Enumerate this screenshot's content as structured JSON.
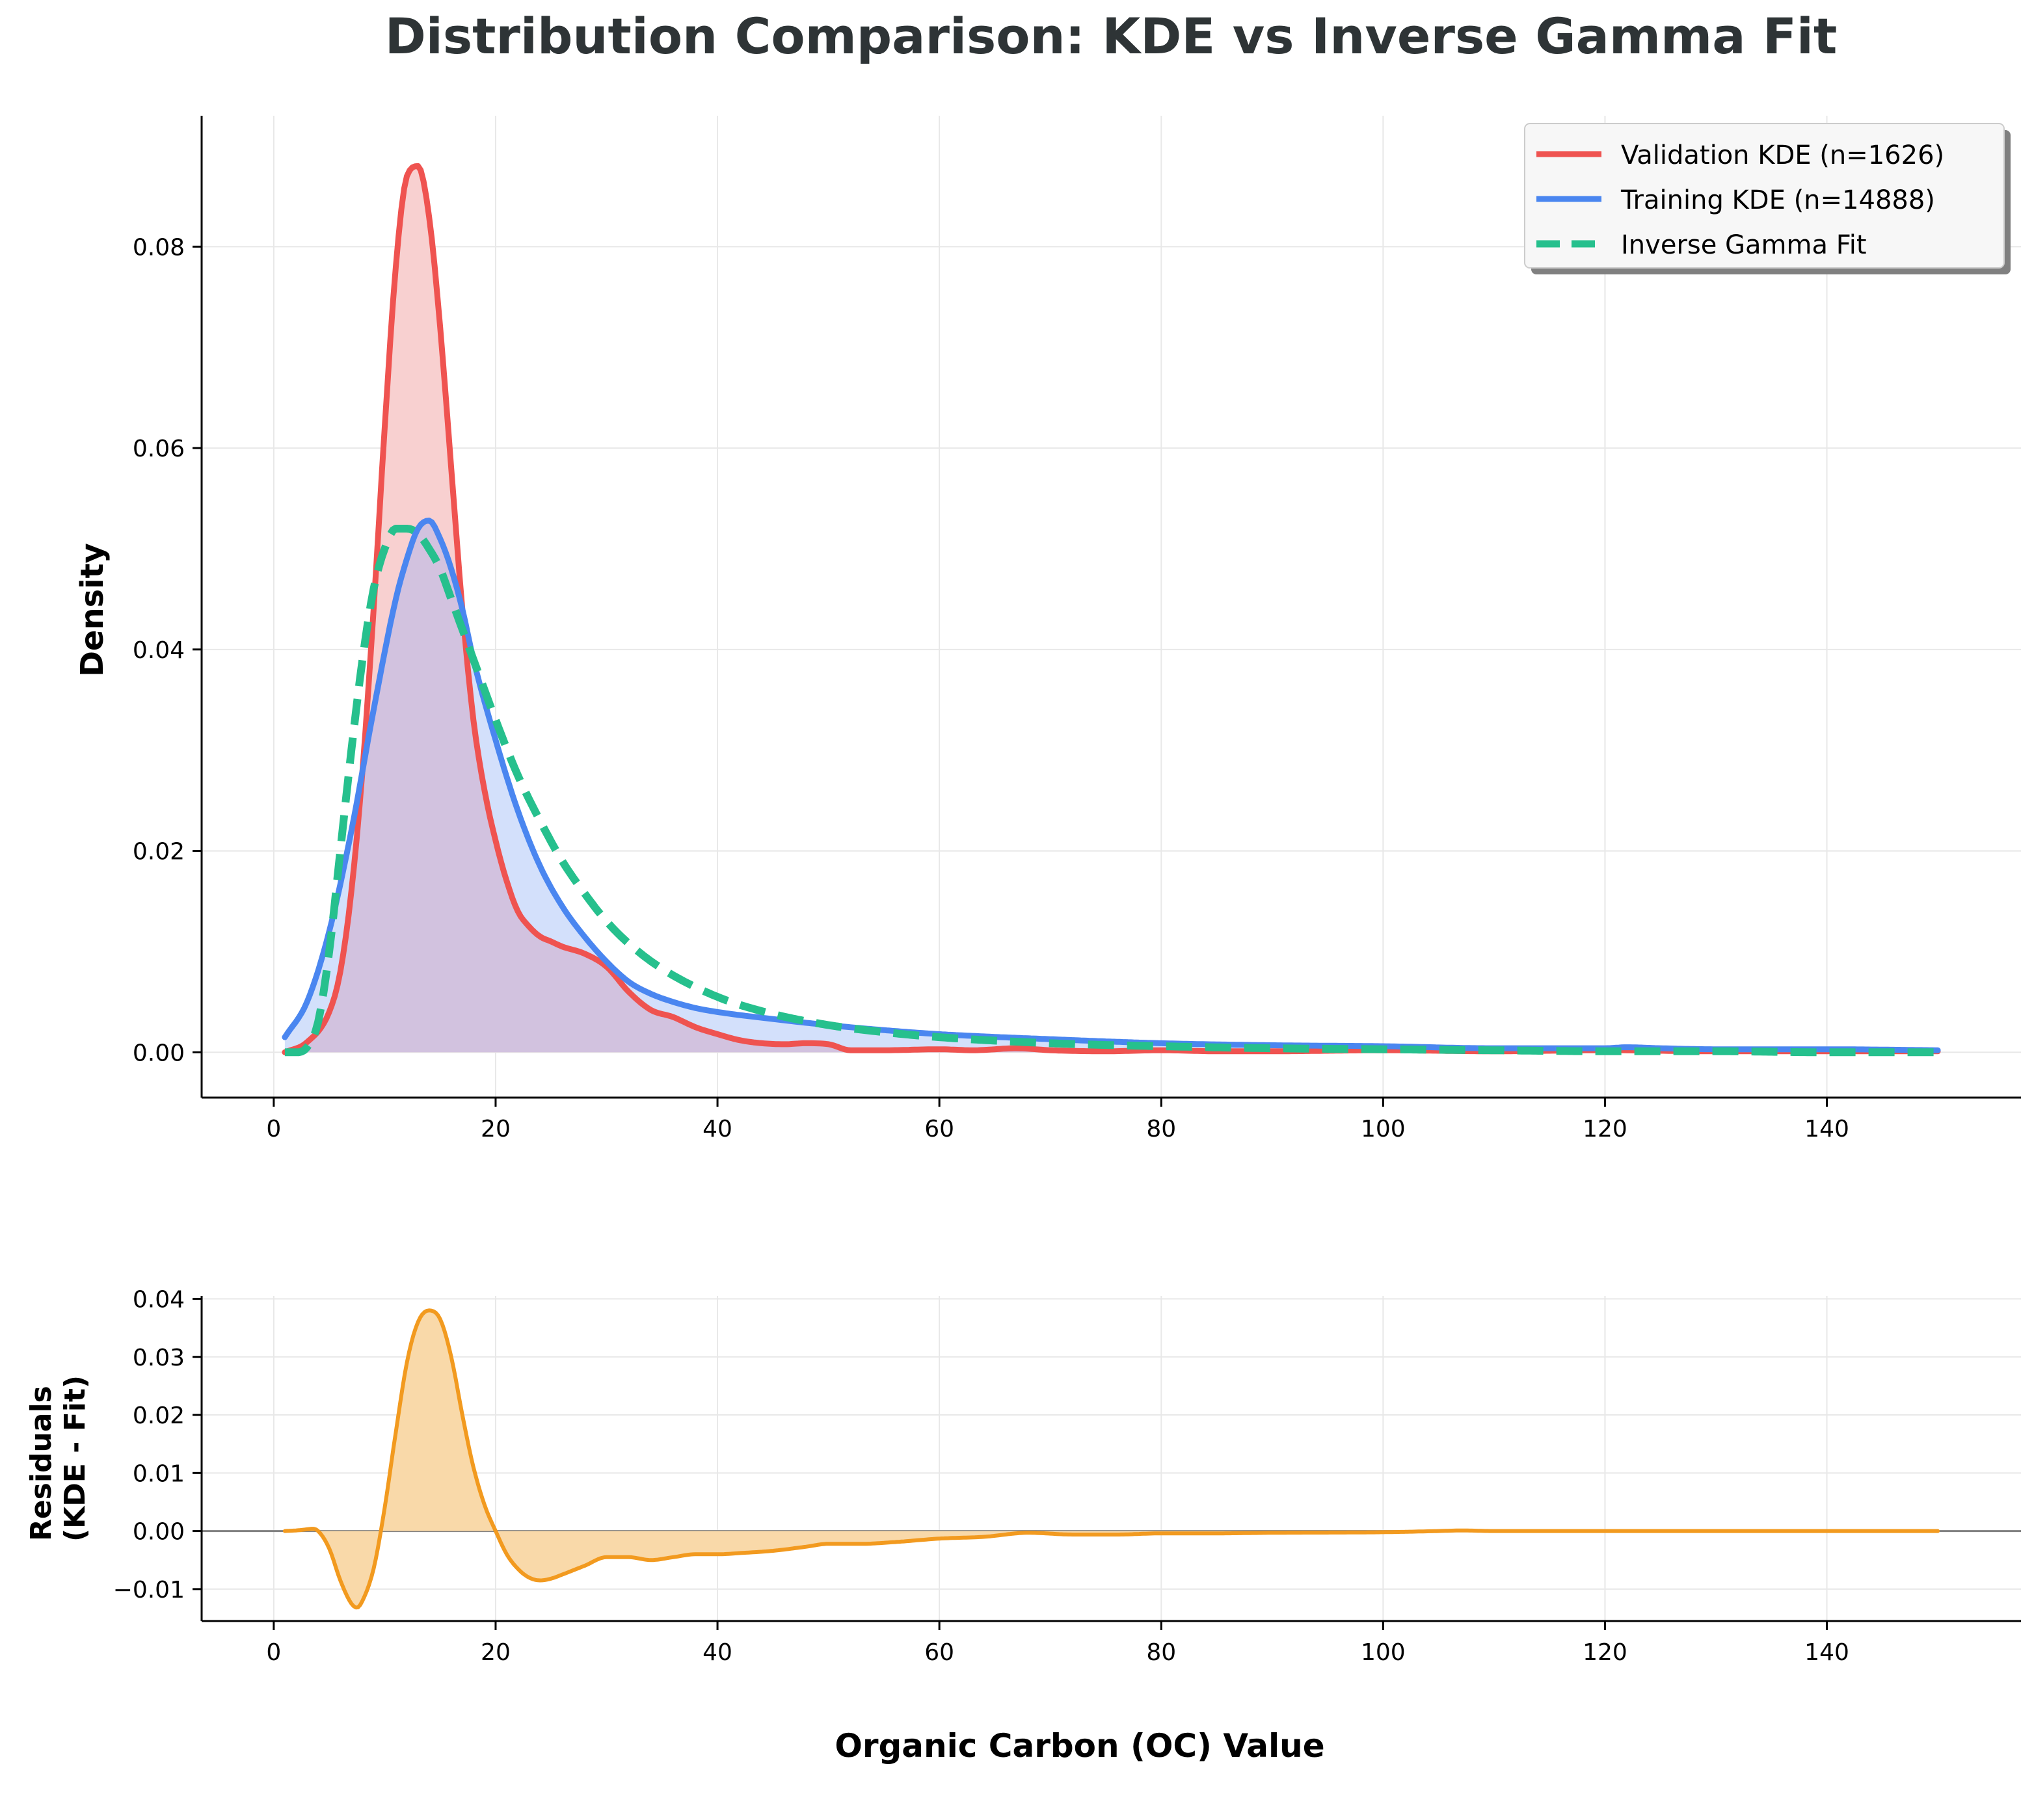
{
  "title": "Distribution Comparison: KDE vs Inverse Gamma Fit",
  "shared_xlabel": "Organic Carbon (OC) Value",
  "colors": {
    "validation": "#ef5350",
    "validation_fill": "#f8d0d0",
    "training": "#4a86f0",
    "training_fill": "#d3e0fb",
    "overlap_fill": "#d2c2df",
    "fit": "#26c08d",
    "residual": "#f29a1f",
    "residual_fill": "#f9d9a9",
    "grid": "#e8e8e8",
    "title": "#2e3436"
  },
  "chart_data": [
    {
      "type": "area",
      "id": "main",
      "title": "Distribution Comparison: KDE vs Inverse Gamma Fit",
      "xlabel": "",
      "ylabel": "Density",
      "xlim": [
        -6.5,
        157.5
      ],
      "ylim": [
        -0.0045,
        0.093
      ],
      "xticks": [
        0,
        20,
        40,
        60,
        80,
        100,
        120,
        140
      ],
      "xtick_labels": [
        "0",
        "20",
        "40",
        "60",
        "80",
        "100",
        "120",
        "140"
      ],
      "yticks": [
        0.0,
        0.02,
        0.04,
        0.06,
        0.08
      ],
      "ytick_labels": [
        "0.00",
        "0.02",
        "0.04",
        "0.06",
        "0.08"
      ],
      "grid": true,
      "legend_position": "top-right",
      "series": [
        {
          "name": "Validation KDE (n=1626)",
          "style": "solid",
          "x": [
            1,
            3,
            5,
            6,
            7,
            8,
            9,
            10,
            11,
            12,
            13,
            14,
            15,
            16,
            17,
            18,
            19,
            20,
            21,
            22,
            23,
            24,
            25,
            26,
            28,
            30,
            32,
            34,
            36,
            38,
            40,
            42,
            44,
            46,
            48,
            50,
            52,
            55,
            60,
            63,
            67,
            70,
            75,
            80,
            85,
            90,
            100,
            110,
            120,
            130,
            140,
            150
          ],
          "y": [
            0.0,
            0.001,
            0.004,
            0.008,
            0.016,
            0.028,
            0.044,
            0.062,
            0.078,
            0.087,
            0.088,
            0.083,
            0.072,
            0.058,
            0.044,
            0.033,
            0.026,
            0.021,
            0.017,
            0.014,
            0.0125,
            0.0115,
            0.011,
            0.0105,
            0.0098,
            0.0085,
            0.006,
            0.0042,
            0.0035,
            0.0025,
            0.0018,
            0.0012,
            0.0009,
            0.0008,
            0.0009,
            0.0008,
            0.0002,
            0.0002,
            0.0003,
            0.0002,
            0.0004,
            0.0002,
            0.0001,
            0.0002,
            0.0001,
            0.0001,
            0.0002,
            0.0001,
            0.0002,
            0.0001,
            0.0001,
            0.0001
          ]
        },
        {
          "name": "Training KDE (n=14888)",
          "style": "solid",
          "x": [
            1,
            3,
            5,
            7,
            9,
            11,
            12,
            13,
            14,
            15,
            16,
            17,
            18,
            20,
            22,
            24,
            26,
            28,
            30,
            32,
            34,
            36,
            38,
            40,
            45,
            50,
            55,
            60,
            70,
            80,
            90,
            100,
            110,
            120,
            122,
            125,
            130,
            140,
            150
          ],
          "y": [
            0.0015,
            0.005,
            0.012,
            0.022,
            0.034,
            0.045,
            0.049,
            0.052,
            0.0528,
            0.051,
            0.048,
            0.044,
            0.039,
            0.031,
            0.024,
            0.0185,
            0.0145,
            0.0115,
            0.009,
            0.007,
            0.0058,
            0.005,
            0.0044,
            0.004,
            0.0033,
            0.0027,
            0.0022,
            0.0018,
            0.0013,
            0.0009,
            0.0007,
            0.0006,
            0.0004,
            0.0004,
            0.0005,
            0.0004,
            0.0003,
            0.0003,
            0.0002
          ]
        },
        {
          "name": "Inverse Gamma Fit",
          "style": "dashed",
          "x": [
            1,
            2,
            3,
            4,
            5,
            6,
            7,
            8,
            9,
            10,
            11,
            12,
            13,
            14,
            15,
            16,
            17,
            18,
            20,
            22,
            24,
            26,
            28,
            30,
            32,
            35,
            40,
            45,
            50,
            55,
            60,
            70,
            80,
            90,
            100,
            110,
            120,
            130,
            140,
            150
          ],
          "y": [
            0.0,
            0.0,
            0.0005,
            0.003,
            0.01,
            0.02,
            0.03,
            0.039,
            0.046,
            0.05,
            0.052,
            0.052,
            0.0515,
            0.05,
            0.048,
            0.045,
            0.042,
            0.039,
            0.033,
            0.0275,
            0.023,
            0.019,
            0.0158,
            0.013,
            0.0108,
            0.0083,
            0.0055,
            0.0038,
            0.0027,
            0.002,
            0.0015,
            0.0009,
            0.0006,
            0.0004,
            0.0003,
            0.0002,
            0.0001,
            0.0001,
            0.0,
            0.0
          ]
        }
      ]
    },
    {
      "type": "area",
      "id": "residuals",
      "xlabel": "Organic Carbon (OC) Value",
      "ylabel": [
        "Residuals",
        "(KDE - Fit)"
      ],
      "xlim": [
        -6.5,
        157.5
      ],
      "ylim": [
        -0.0155,
        0.0405
      ],
      "xticks": [
        0,
        20,
        40,
        60,
        80,
        100,
        120,
        140
      ],
      "xtick_labels": [
        "0",
        "20",
        "40",
        "60",
        "80",
        "100",
        "120",
        "140"
      ],
      "yticks": [
        -0.01,
        0.0,
        0.01,
        0.02,
        0.03,
        0.04
      ],
      "ytick_labels": [
        "−0.01",
        "0.00",
        "0.01",
        "0.02",
        "0.03",
        "0.04"
      ],
      "grid": true,
      "series": [
        {
          "style": "solid",
          "x": [
            1,
            2,
            3,
            3.5,
            4,
            5,
            6,
            7,
            7.5,
            8,
            9,
            10,
            11,
            12,
            13,
            14,
            15,
            16,
            17,
            18,
            19,
            20,
            21,
            22,
            23,
            24,
            25,
            26,
            28,
            30,
            32,
            34,
            36,
            38,
            40,
            42,
            45,
            48,
            50,
            53,
            56,
            60,
            64,
            68,
            72,
            76,
            80,
            85,
            90,
            100,
            105,
            107,
            110,
            120,
            130,
            140,
            150
          ],
          "y": [
            0.0,
            0.0001,
            0.0003,
            0.0004,
            0.0,
            -0.003,
            -0.0085,
            -0.0125,
            -0.0132,
            -0.012,
            -0.0065,
            0.004,
            0.017,
            0.029,
            0.036,
            0.038,
            0.0365,
            0.03,
            0.02,
            0.011,
            0.0045,
            0.0,
            -0.004,
            -0.0065,
            -0.008,
            -0.0085,
            -0.0082,
            -0.0075,
            -0.006,
            -0.0045,
            -0.0045,
            -0.005,
            -0.0045,
            -0.004,
            -0.004,
            -0.0038,
            -0.0034,
            -0.0027,
            -0.0022,
            -0.0022,
            -0.0019,
            -0.0013,
            -0.001,
            -0.0003,
            -0.0006,
            -0.0006,
            -0.0004,
            -0.0004,
            -0.0003,
            -0.0002,
            0.0,
            0.0001,
            0.0,
            0.0,
            0.0,
            0.0,
            0.0
          ]
        }
      ]
    }
  ]
}
